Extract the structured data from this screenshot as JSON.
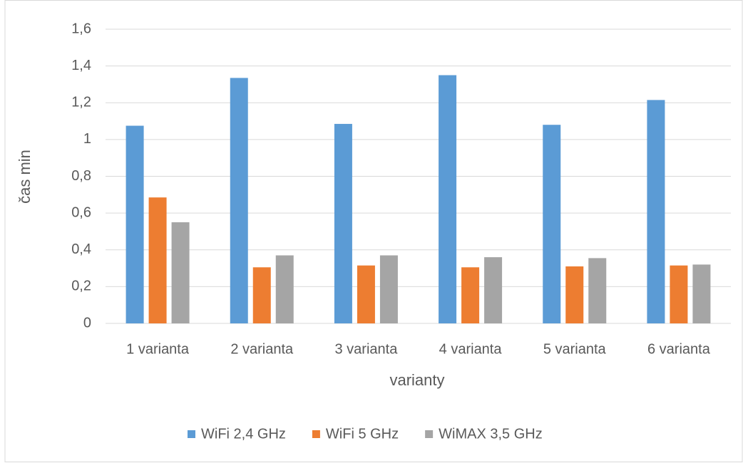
{
  "chart_data": {
    "type": "bar",
    "x_label": "varianty",
    "y_label": "čas min",
    "categories": [
      "1 varianta",
      "2 varianta",
      "3 varianta",
      "4 varianta",
      "5 varianta",
      "6 varianta"
    ],
    "series": [
      {
        "name": "WiFi 2,4 GHz",
        "color": "#5b9bd5",
        "values": [
          1.075,
          1.335,
          1.085,
          1.35,
          1.08,
          1.215
        ]
      },
      {
        "name": "WiFi 5 GHz",
        "color": "#ed7d31",
        "values": [
          0.685,
          0.305,
          0.315,
          0.305,
          0.31,
          0.315
        ]
      },
      {
        "name": "WiMAX 3,5 GHz",
        "color": "#a5a5a5",
        "values": [
          0.55,
          0.37,
          0.37,
          0.36,
          0.355,
          0.32
        ]
      }
    ],
    "ylim": [
      0,
      1.6
    ],
    "yticks": [
      0,
      {
        "value": 0.2,
        "label": "0,2"
      },
      {
        "value": 0.4,
        "label": "0,4"
      },
      {
        "value": 0.6,
        "label": "0,6"
      },
      {
        "value": 0.8,
        "label": "0,8"
      },
      1,
      {
        "value": 1.2,
        "label": "1,2"
      },
      {
        "value": 1.4,
        "label": "1,4"
      },
      {
        "value": 1.6,
        "label": "1,6"
      }
    ],
    "grid": true,
    "legend": "bottom"
  }
}
